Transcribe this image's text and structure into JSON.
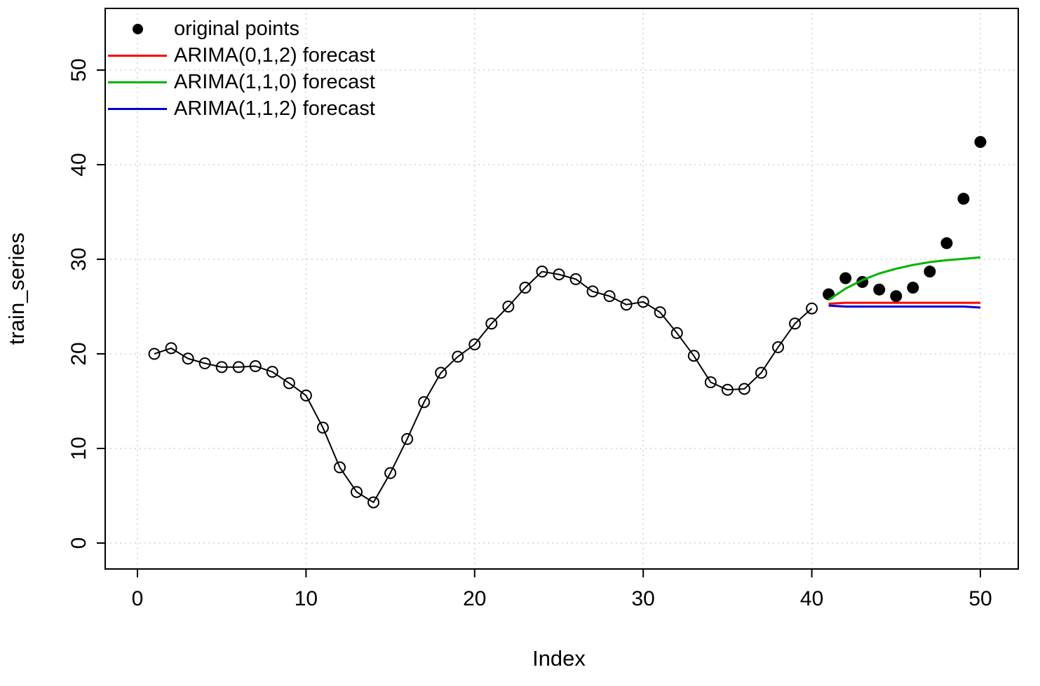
{
  "legend": {
    "items": [
      {
        "label": "original points",
        "type": "point",
        "color": "#000000"
      },
      {
        "label": "ARIMA(0,1,2) forecast",
        "type": "line",
        "color": "#ff0000"
      },
      {
        "label": "ARIMA(1,1,0) forecast",
        "type": "line",
        "color": "#00b400"
      },
      {
        "label": "ARIMA(1,1,2) forecast",
        "type": "line",
        "color": "#0000cc"
      }
    ]
  },
  "chart_data": {
    "type": "line",
    "title": "",
    "xlabel": "Index",
    "ylabel": "train_series",
    "xlim": [
      0,
      50
    ],
    "ylim": [
      0,
      55
    ],
    "x_ticks": [
      0,
      10,
      20,
      30,
      40,
      50
    ],
    "y_ticks": [
      0,
      10,
      20,
      30,
      40,
      50
    ],
    "grid": true,
    "grid_color": "#d3d3d3",
    "series": [
      {
        "name": "train_series",
        "style": "line-open-circles",
        "color": "#000000",
        "x": [
          1,
          2,
          3,
          4,
          5,
          6,
          7,
          8,
          9,
          10,
          11,
          12,
          13,
          14,
          15,
          16,
          17,
          18,
          19,
          20,
          21,
          22,
          23,
          24,
          25,
          26,
          27,
          28,
          29,
          30,
          31,
          32,
          33,
          34,
          35,
          36,
          37,
          38,
          39,
          40
        ],
        "values": [
          20.0,
          20.6,
          19.5,
          19.0,
          18.6,
          18.6,
          18.7,
          18.1,
          16.9,
          15.6,
          12.2,
          8.0,
          5.4,
          4.3,
          7.4,
          11.0,
          14.9,
          18.0,
          19.7,
          21.0,
          23.2,
          25.0,
          27.0,
          28.7,
          28.4,
          27.9,
          26.6,
          26.1,
          25.2,
          25.5,
          24.4,
          22.2,
          19.8,
          17.0,
          16.2,
          16.3,
          18.0,
          20.7,
          23.2,
          24.8
        ]
      },
      {
        "name": "original points",
        "style": "filled-points",
        "color": "#000000",
        "x": [
          41,
          42,
          43,
          44,
          45,
          46,
          47,
          48,
          49,
          50
        ],
        "values": [
          26.3,
          28.0,
          27.6,
          26.8,
          26.1,
          27.0,
          28.7,
          31.7,
          36.4,
          42.4
        ]
      },
      {
        "name": "ARIMA(0,1,2) forecast",
        "style": "line",
        "color": "#ff0000",
        "x": [
          41,
          42,
          43,
          44,
          45,
          46,
          47,
          48,
          49,
          50
        ],
        "values": [
          25.3,
          25.4,
          25.4,
          25.4,
          25.4,
          25.4,
          25.4,
          25.4,
          25.4,
          25.4
        ]
      },
      {
        "name": "ARIMA(1,1,0) forecast",
        "style": "line",
        "color": "#00b400",
        "x": [
          41,
          42,
          43,
          44,
          45,
          46,
          47,
          48,
          49,
          50
        ],
        "values": [
          25.7,
          26.9,
          27.8,
          28.5,
          29.0,
          29.4,
          29.7,
          29.9,
          30.05,
          30.2
        ]
      },
      {
        "name": "ARIMA(1,1,2) forecast",
        "style": "line",
        "color": "#0000cc",
        "x": [
          41,
          42,
          43,
          44,
          45,
          46,
          47,
          48,
          49,
          50
        ],
        "values": [
          25.1,
          25.0,
          25.0,
          25.0,
          25.0,
          25.0,
          25.0,
          25.0,
          25.0,
          24.9
        ]
      }
    ]
  }
}
